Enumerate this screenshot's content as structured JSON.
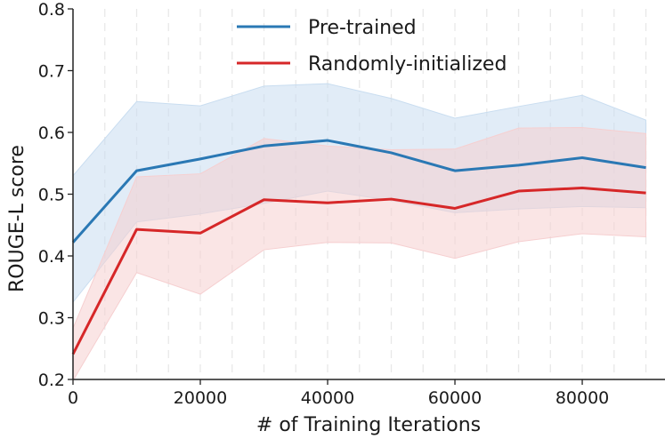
{
  "chart_data": {
    "type": "line",
    "title": "",
    "xlabel": "# of Training Iterations",
    "ylabel": "ROUGE-L score",
    "xlim": [
      0,
      93000
    ],
    "ylim": [
      0.2,
      0.8
    ],
    "x": [
      0,
      10000,
      20000,
      30000,
      40000,
      50000,
      60000,
      70000,
      80000,
      90000
    ],
    "xticks": [
      0,
      20000,
      40000,
      60000,
      80000
    ],
    "xtick_labels": [
      "0",
      "20000",
      "40000",
      "60000",
      "80000"
    ],
    "yticks": [
      0.2,
      0.3,
      0.4,
      0.5,
      0.6,
      0.7,
      0.8
    ],
    "ytick_labels": [
      "0.2",
      "0.3",
      "0.4",
      "0.5",
      "0.6",
      "0.7",
      "0.8"
    ],
    "grid": "vertical dashed",
    "legend_position": "top-center",
    "series": [
      {
        "name": "Pre-trained",
        "color": "#2a78b4",
        "band_color": "#c9ddf0",
        "values": [
          0.422,
          0.538,
          0.557,
          0.578,
          0.587,
          0.567,
          0.538,
          0.547,
          0.559,
          0.543
        ],
        "lower": [
          0.325,
          0.455,
          0.468,
          0.485,
          0.505,
          0.49,
          0.47,
          0.476,
          0.48,
          0.478
        ],
        "upper": [
          0.53,
          0.65,
          0.643,
          0.675,
          0.679,
          0.655,
          0.623,
          0.642,
          0.66,
          0.62
        ]
      },
      {
        "name": "Randomly-initialized",
        "color": "#d62728",
        "band_color": "#f6cfd0",
        "values": [
          0.241,
          0.443,
          0.437,
          0.491,
          0.486,
          0.492,
          0.477,
          0.505,
          0.51,
          0.502
        ],
        "lower": [
          0.198,
          0.373,
          0.338,
          0.41,
          0.422,
          0.421,
          0.396,
          0.423,
          0.436,
          0.431
        ],
        "upper": [
          0.283,
          0.528,
          0.533,
          0.59,
          0.578,
          0.572,
          0.573,
          0.607,
          0.608,
          0.598
        ]
      }
    ]
  }
}
